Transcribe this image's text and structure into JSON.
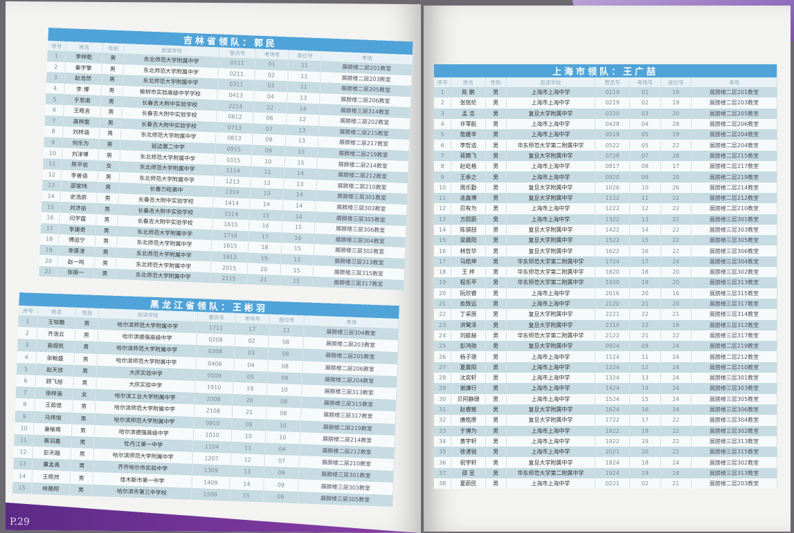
{
  "page_number": "P.29",
  "columns": [
    "序号",
    "姓名",
    "性别",
    "就读学校",
    "营员号",
    "考场号",
    "座位号",
    "考场"
  ],
  "colors": {
    "header_blue": "#4fa3d8",
    "row_alt": "#c6dbe2",
    "accent_purple": "#7d4fb0"
  },
  "tables": {
    "jilin": {
      "title": "吉林省领队：郭民",
      "rows": [
        [
          "1",
          "李梓乾",
          "男",
          "东北师范大学附属中学",
          "0111",
          "01",
          "11",
          "展膀楼二层201教室"
        ],
        [
          "2",
          "秦宇擎",
          "男",
          "东北师范大学附属中学",
          "0211",
          "02",
          "11",
          "展膀楼二层203教室"
        ],
        [
          "3",
          "赵浩然",
          "男",
          "东北师范大学附属中学",
          "0311",
          "03",
          "11",
          "展膀楼二层205教室"
        ],
        [
          "4",
          "李 博",
          "男",
          "榆树市实验高级中学学校",
          "0413",
          "04",
          "13",
          "展膀楼二层206教室"
        ],
        [
          "5",
          "于思南",
          "男",
          "长春吉大附中实验学校",
          "2214",
          "22",
          "14",
          "展膀楼三层314教室"
        ],
        [
          "6",
          "王皓言",
          "男",
          "长春吉大附中实验学校",
          "0612",
          "06",
          "12",
          "展膀楼二层202教室"
        ],
        [
          "7",
          "高梓宸",
          "男",
          "长春吉大附中实验学校",
          "0713",
          "07",
          "13",
          "展膀楼二层215教室"
        ],
        [
          "8",
          "刘梓涵",
          "男",
          "东北师范大学附属中学",
          "0813",
          "08",
          "13",
          "展膀楼二层217教室"
        ],
        [
          "9",
          "何乐为",
          "男",
          "延边第二中学",
          "0915",
          "09",
          "15",
          "展膀楼二层219教室"
        ],
        [
          "10",
          "刘淳博",
          "男",
          "东北师范大学附属中学",
          "1015",
          "10",
          "15",
          "展膀楼二层214教室"
        ],
        [
          "11",
          "陈平岩",
          "女",
          "东北师范大学附属中学",
          "1114",
          "11",
          "14",
          "展膀楼二层212教室"
        ],
        [
          "12",
          "李善语",
          "男",
          "东北师范大学附属中学",
          "1213",
          "12",
          "13",
          "展膀楼二层210教室"
        ],
        [
          "13",
          "邵家玮",
          "男",
          "长春力旺高中",
          "1314",
          "13",
          "14",
          "展膀楼三层301教室"
        ],
        [
          "14",
          "史浩辰",
          "男",
          "长春吉大附中实验学校",
          "1414",
          "14",
          "14",
          "展膀楼三层303教室"
        ],
        [
          "15",
          "刘济岳",
          "男",
          "长春吉大附中实验学校",
          "1514",
          "15",
          "14",
          "展膀楼三层305教室"
        ],
        [
          "16",
          "闫宇霆",
          "男",
          "长春吉大附中实验学校",
          "1615",
          "16",
          "15",
          "展膀楼三层306教室"
        ],
        [
          "17",
          "李建奇",
          "男",
          "东北师范大学附属中学",
          "1716",
          "17",
          "16",
          "展膀楼三层304教室"
        ],
        [
          "18",
          "傅迫宁",
          "男",
          "东北师范大学附属中学",
          "1815",
          "18",
          "15",
          "展膀楼三层302教室"
        ],
        [
          "19",
          "李厚淳",
          "男",
          "东北师范大学附属中学",
          "1913",
          "19",
          "13",
          "展膀楼三层313教室"
        ],
        [
          "20",
          "赵一鸣",
          "男",
          "东北师范大学附属中学",
          "2015",
          "20",
          "15",
          "展膀楼三层315教室"
        ],
        [
          "21",
          "张振一",
          "男",
          "东北师范大学附属中学",
          "2115",
          "21",
          "15",
          "展膀楼三层317教室"
        ]
      ]
    },
    "heilongjiang": {
      "title": "黑龙江省领队：王彬羽",
      "rows": [
        [
          "1",
          "王铉瞻",
          "男",
          "哈尔滨师范大学附属中学",
          "1711",
          "17",
          "11",
          "展膀楼三层304教室"
        ],
        [
          "2",
          "齐浩云",
          "男",
          "哈尔滨德强高级中学",
          "0208",
          "02",
          "08",
          "展膀楼二层203教室"
        ],
        [
          "3",
          "高煜凯",
          "男",
          "哈尔滨师范大学附属中学",
          "0308",
          "03",
          "08",
          "展膀楼二层205教室"
        ],
        [
          "4",
          "张翰盛",
          "男",
          "哈尔滨师范大学附属中学",
          "0408",
          "04",
          "08",
          "展膀楼二层206教室"
        ],
        [
          "5",
          "赵天放",
          "男",
          "大庆实验中学",
          "0509",
          "05",
          "09",
          "展膀楼二层204教室"
        ],
        [
          "6",
          "顾飞旭",
          "男",
          "大庆实验中学",
          "1910",
          "19",
          "10",
          "展膀楼三层313教室"
        ],
        [
          "7",
          "徐梓涵",
          "女",
          "哈尔滨工业大学附属中学",
          "2008",
          "20",
          "08",
          "展膀楼三层315教室"
        ],
        [
          "8",
          "王茹悠",
          "男",
          "哈尔滨师范大学附属中学",
          "2108",
          "21",
          "08",
          "展膀楼三层317教室"
        ],
        [
          "9",
          "马炜恒",
          "男",
          "哈尔滨师范大学附属中学",
          "0910",
          "09",
          "10",
          "展膀楼二层219教室"
        ],
        [
          "10",
          "姜榆南",
          "男",
          "哈尔滨德强高级中学",
          "1010",
          "10",
          "10",
          "展膀楼二层214教室"
        ],
        [
          "11",
          "蔡羽嘉",
          "男",
          "牡丹江第一中学",
          "1104",
          "11",
          "04",
          "展膀楼二层212教室"
        ],
        [
          "12",
          "彭天越",
          "男",
          "哈尔滨师范大学附属中学",
          "1207",
          "12",
          "07",
          "展膀楼二层210教室"
        ],
        [
          "13",
          "董孟禹",
          "男",
          "齐齐哈尔市实验中学",
          "1309",
          "13",
          "09",
          "展膀楼三层301教室"
        ],
        [
          "14",
          "王熙然",
          "男",
          "佳木斯市第一中学",
          "1409",
          "14",
          "09",
          "展膀楼三层303教室"
        ],
        [
          "15",
          "林晟翔",
          "男",
          "哈尔滨市第三中学校",
          "1509",
          "15",
          "09",
          "展膀楼三层305教室"
        ]
      ]
    },
    "shanghai": {
      "title": "上海市领队：王广喆",
      "rows": [
        [
          "1",
          "陈 鹏",
          "男",
          "上海市上海中学",
          "0119",
          "01",
          "19",
          "展膀楼二层201教室"
        ],
        [
          "2",
          "张铭伦",
          "男",
          "上海市上海中学",
          "0219",
          "02",
          "19",
          "展膀楼二层203教室"
        ],
        [
          "3",
          "孟 浩",
          "男",
          "复旦大学附属中学",
          "0320",
          "03",
          "20",
          "展膀楼二层205教室"
        ],
        [
          "4",
          "许零航",
          "男",
          "上海市上海中学",
          "0428",
          "04",
          "28",
          "展膀楼二层206教室"
        ],
        [
          "5",
          "詹媛丰",
          "男",
          "上海市上海中学",
          "0519",
          "05",
          "19",
          "展膀楼二层204教室"
        ],
        [
          "6",
          "李哲适",
          "男",
          "华东师范大学第二附属中学",
          "0522",
          "05",
          "22",
          "展膀楼二层204教室"
        ],
        [
          "7",
          "蒋腾飞",
          "男",
          "复旦大学附属中学",
          "0728",
          "07",
          "28",
          "展膀楼二层215教室"
        ],
        [
          "8",
          "赵屹格",
          "男",
          "上海市上海中学",
          "0817",
          "08",
          "17",
          "展膀楼二层217教室"
        ],
        [
          "9",
          "王参之",
          "男",
          "上海市上海中学",
          "0920",
          "09",
          "20",
          "展膀楼二层219教室"
        ],
        [
          "10",
          "周乐勤",
          "男",
          "复旦大学附属中学",
          "1026",
          "10",
          "26",
          "展膀楼二层214教室"
        ],
        [
          "11",
          "连鑫博",
          "男",
          "复旦大学附属中学",
          "1122",
          "11",
          "22",
          "展膀楼二层212教室"
        ],
        [
          "12",
          "忍有为",
          "男",
          "上海市上海中学",
          "1222",
          "12",
          "22",
          "展膀楼二层210教室"
        ],
        [
          "13",
          "方熙蔚",
          "男",
          "上海市上海中学",
          "1322",
          "13",
          "22",
          "展膀楼三层301教室"
        ],
        [
          "14",
          "陈骐喆",
          "男",
          "复旦大学附属中学",
          "1422",
          "14",
          "22",
          "展膀楼三层303教室"
        ],
        [
          "15",
          "梁晨阳",
          "男",
          "复旦大学附属中学",
          "1522",
          "15",
          "22",
          "展膀楼三层305教室"
        ],
        [
          "16",
          "林哲华",
          "男",
          "复旦大学附属中学",
          "1622",
          "16",
          "22",
          "展膀楼三层306教室"
        ],
        [
          "17",
          "马皓坤",
          "男",
          "华东师范大学第二附属中学",
          "1724",
          "17",
          "24",
          "展膀楼三层304教室"
        ],
        [
          "18",
          "王 梓",
          "男",
          "华东师范大学第二附属中学",
          "1820",
          "18",
          "20",
          "展膀楼三层302教室"
        ],
        [
          "19",
          "程乐平",
          "男",
          "华东师范大学第二附属中学",
          "1920",
          "19",
          "20",
          "展膀楼三层313教室"
        ],
        [
          "20",
          "阮欣睿",
          "男",
          "上海市上海中学",
          "2016",
          "20",
          "16",
          "展膀楼三层315教室"
        ],
        [
          "21",
          "俞致远",
          "男",
          "上海市上海中学",
          "2120",
          "21",
          "20",
          "展膀楼三层317教室"
        ],
        [
          "22",
          "丁采辰",
          "男",
          "复旦大学附属中学",
          "2221",
          "22",
          "21",
          "展膀楼三层314教室"
        ],
        [
          "23",
          "洪鹭泽",
          "男",
          "复旦大学附属中学",
          "2319",
          "23",
          "19",
          "展膀楼三层312教室"
        ],
        [
          "24",
          "刘歆赫",
          "男",
          "华东师范大学第二附属中学",
          "2122",
          "21",
          "22",
          "展膀楼三层317教室"
        ],
        [
          "25",
          "彭鸿勋",
          "男",
          "复旦大学附属中学",
          "0924",
          "09",
          "24",
          "展膀楼二层219教室"
        ],
        [
          "26",
          "杨子璟",
          "男",
          "上海市上海中学",
          "1124",
          "11",
          "24",
          "展膀楼二层212教室"
        ],
        [
          "27",
          "夏晨阳",
          "男",
          "上海市上海中学",
          "1224",
          "12",
          "24",
          "展膀楼二层210教室"
        ],
        [
          "28",
          "沈奕轩",
          "男",
          "上海市上海中学",
          "1324",
          "13",
          "24",
          "展膀楼三层301教室"
        ],
        [
          "29",
          "谢濂行",
          "男",
          "上海市上海中学",
          "1424",
          "14",
          "24",
          "展膀楼三层303教室"
        ],
        [
          "30",
          "贝阿静珊",
          "男",
          "上海市上海中学",
          "1524",
          "15",
          "24",
          "展膀楼三层305教室"
        ],
        [
          "31",
          "赵睿宸",
          "男",
          "复旦大学附属中学",
          "1624",
          "16",
          "24",
          "展膀楼三层306教室"
        ],
        [
          "32",
          "唐皓原",
          "男",
          "复旦大学附属中学",
          "1722",
          "17",
          "22",
          "展膀楼三层304教室"
        ],
        [
          "33",
          "于博为",
          "男",
          "上海市上海中学",
          "1822",
          "18",
          "22",
          "展膀楼三层302教室"
        ],
        [
          "34",
          "黄宇轩",
          "男",
          "上海市上海中学",
          "1922",
          "19",
          "22",
          "展膀楼三层313教室"
        ],
        [
          "35",
          "徐湛锐",
          "男",
          "上海市上海中学",
          "2021",
          "20",
          "21",
          "展膀楼三层315教室"
        ],
        [
          "36",
          "祝宇轩",
          "男",
          "复旦大学附属中学",
          "1824",
          "18",
          "24",
          "展膀楼三层302教室"
        ],
        [
          "37",
          "邵 昱",
          "男",
          "华东师范大学第二附属中学",
          "1924",
          "19",
          "24",
          "展膀楼三层313教室"
        ],
        [
          "38",
          "夏蔚民",
          "男",
          "上海市上海中学",
          "0221",
          "02",
          "21",
          "展膀楼二层203教室"
        ]
      ]
    }
  }
}
